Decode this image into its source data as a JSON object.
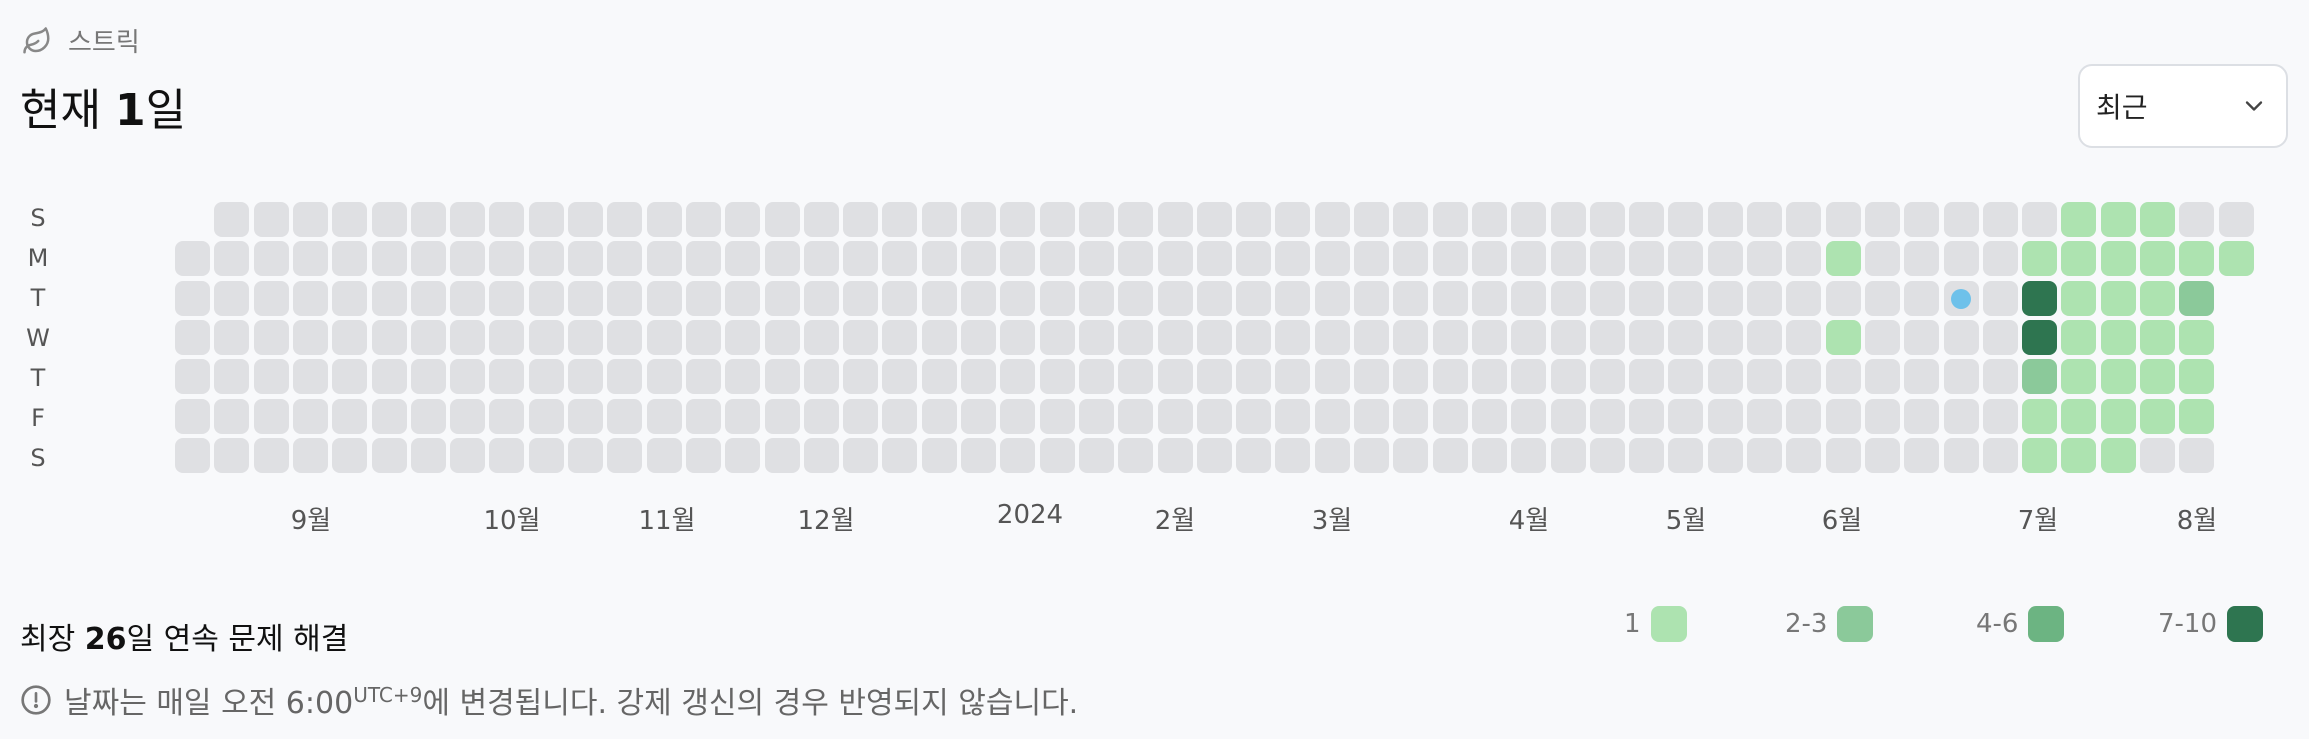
{
  "header": {
    "label": "스트릭",
    "icon": "leaf-icon",
    "title_prefix": "현재 ",
    "title_count": "1",
    "title_suffix": "일"
  },
  "range_select": {
    "value": "최근"
  },
  "days": [
    "S",
    "M",
    "T",
    "W",
    "T",
    "F",
    "S"
  ],
  "months": [
    "9월",
    "10월",
    "11월",
    "12월",
    "2024",
    "2월",
    "3월",
    "4월",
    "5월",
    "6월",
    "7월",
    "8월"
  ],
  "longest": {
    "prefix": "최장 ",
    "count": "26",
    "suffix": "일 연속 문제 해결"
  },
  "legend": [
    {
      "label": "1",
      "color": "#ade3b0"
    },
    {
      "label": "2-3",
      "color": "#8bc99a"
    },
    {
      "label": "4-6",
      "color": "#6cb482"
    },
    {
      "label": "7-10",
      "color": "#2e7550"
    }
  ],
  "note": {
    "text": "날짜는 매일 오전 6:00",
    "tz": "UTC+9",
    "suffix": "에 변경됩니다. 강제 갱신의 경우 반영되지 않습니다."
  },
  "colors": {
    "empty": "#dfe0e3"
  },
  "heatmap": {
    "weeks": 53,
    "levels": {
      "42,1": 1,
      "42,3": 1,
      "47,2": 4,
      "47,3": 4,
      "47,4": 2,
      "47,1": 1,
      "47,5": 1,
      "47,6": 1,
      "48,0": 1,
      "48,1": 1,
      "48,2": 1,
      "48,3": 1,
      "48,4": 1,
      "48,5": 1,
      "48,6": 1,
      "49,0": 1,
      "49,1": 1,
      "49,2": 1,
      "49,3": 1,
      "49,4": 1,
      "49,5": 1,
      "49,6": 1,
      "50,0": 1,
      "50,1": 1,
      "50,2": 1,
      "50,3": 1,
      "50,4": 1,
      "50,5": 1,
      "51,1": 1,
      "51,2": 2,
      "51,3": 1,
      "51,4": 1,
      "51,5": 1,
      "52,1": 1
    }
  }
}
